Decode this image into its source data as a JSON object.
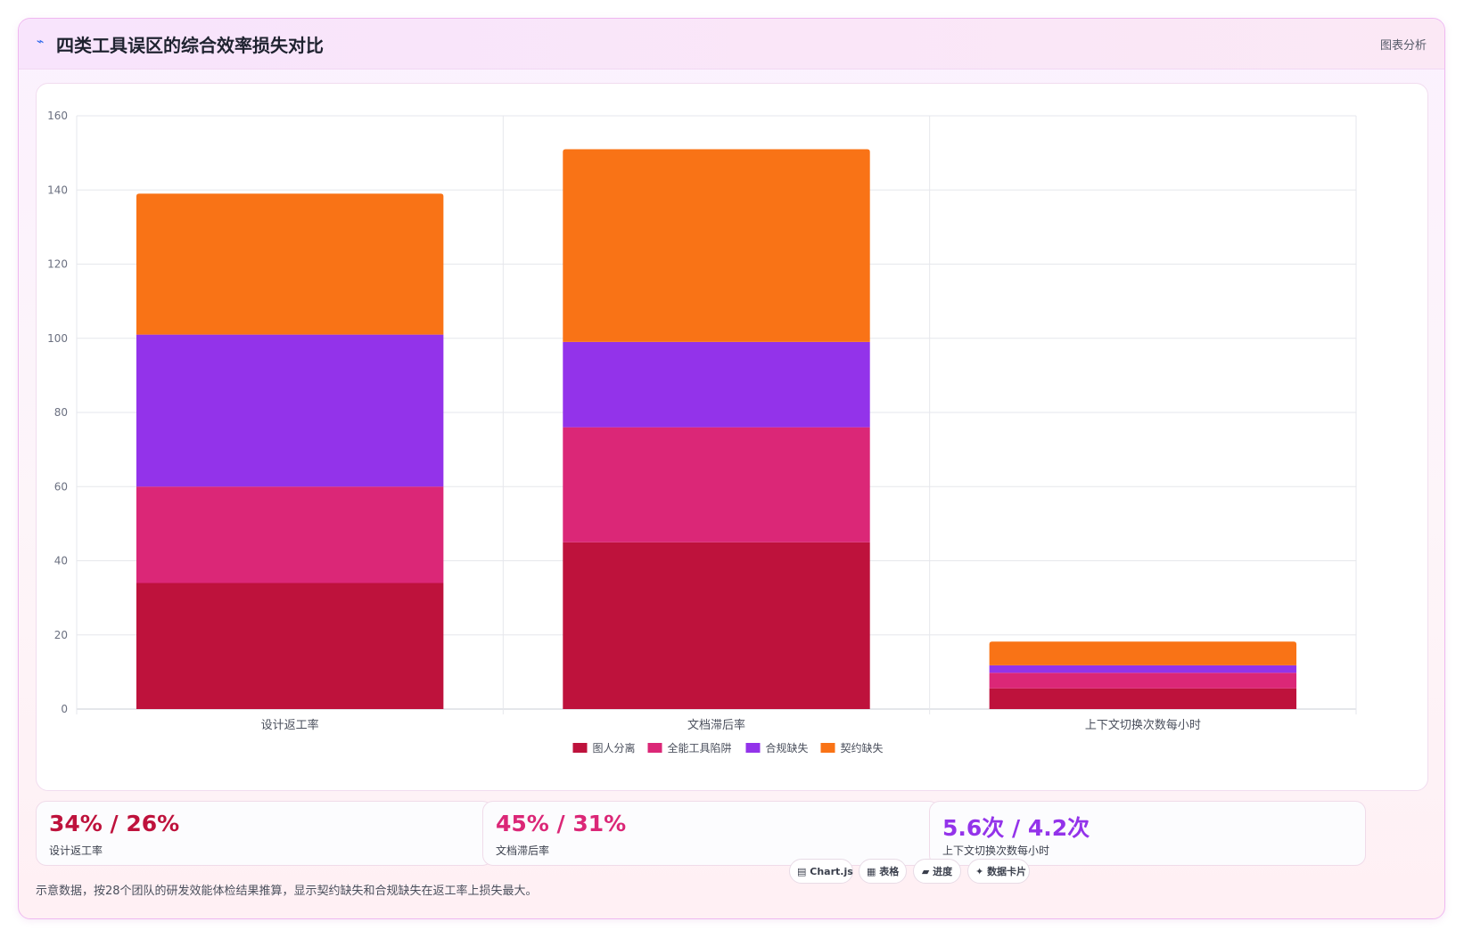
{
  "header": {
    "icon": "wave-icon",
    "title": "四类工具误区的综合效率损失对比",
    "right_label": "图表分析"
  },
  "chart_data": {
    "type": "bar",
    "stacked": true,
    "categories": [
      "设计返工率",
      "文档滞后率",
      "上下文切换次数每小时"
    ],
    "series": [
      {
        "name": "图人分离",
        "color": "#be123c",
        "values": [
          34,
          45,
          5.6
        ]
      },
      {
        "name": "全能工具陷阱",
        "color": "#db2777",
        "values": [
          26,
          31,
          4.2
        ]
      },
      {
        "name": "合规缺失",
        "color": "#9333ea",
        "values": [
          41,
          23,
          2
        ]
      },
      {
        "name": "契约缺失",
        "color": "#f97316",
        "values": [
          38,
          52,
          6.4
        ]
      }
    ],
    "ylim": [
      0,
      160
    ],
    "yticks": [
      0,
      20,
      40,
      60,
      80,
      100,
      120,
      140,
      160
    ],
    "grid": true,
    "legend": "bottom"
  },
  "stats": [
    {
      "value": "34% / 26%",
      "label": "设计返工率",
      "color": "#be123c"
    },
    {
      "value": "45% / 31%",
      "label": "文档滞后率",
      "color": "#db2777"
    },
    {
      "value": "5.6次 / 4.2次",
      "label": "上下文切换次数每小时",
      "color": "#9333ea"
    }
  ],
  "footnote": "示意数据，按28个团队的研发效能体检结果推算，显示契约缺失和合规缺失在返工率上损失最大。",
  "pills": [
    {
      "icon": "chart-icon",
      "glyph": "▤",
      "label": "Chart.js"
    },
    {
      "icon": "table-icon",
      "glyph": "▦",
      "label": "表格"
    },
    {
      "icon": "progress-icon",
      "glyph": "▰",
      "label": "进度"
    },
    {
      "icon": "sparkle-icon",
      "glyph": "✦",
      "label": "数据卡片"
    }
  ]
}
